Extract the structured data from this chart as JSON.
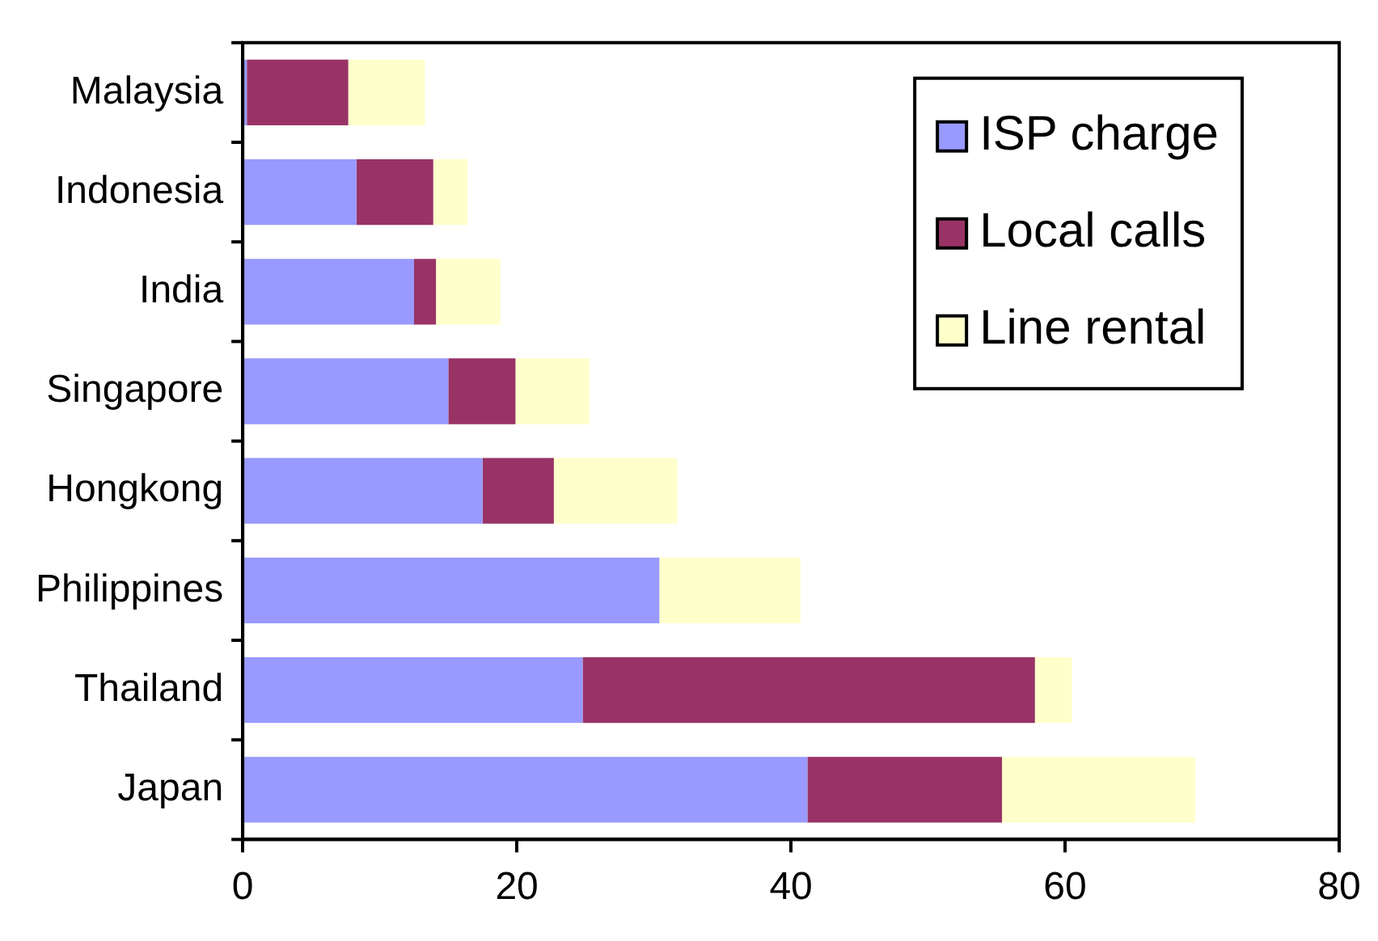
{
  "chart_data": {
    "type": "bar",
    "orientation": "horizontal",
    "stacked": true,
    "categories": [
      "Malaysia",
      "Indonesia",
      "India",
      "Singapore",
      "Hongkong",
      "Philippines",
      "Thailand",
      "Japan"
    ],
    "series": [
      {
        "name": "ISP charge",
        "color": "#9999ff",
        "values": [
          0.3,
          8.3,
          12.5,
          15.0,
          17.5,
          30.4,
          24.8,
          41.2
        ]
      },
      {
        "name": "Local calls",
        "color": "#993366",
        "values": [
          7.4,
          5.6,
          1.6,
          4.9,
          5.2,
          0,
          33.0,
          14.2
        ]
      },
      {
        "name": "Line rental",
        "color": "#ffffcc",
        "values": [
          5.6,
          2.5,
          4.7,
          5.4,
          9.0,
          10.3,
          2.7,
          14.1
        ]
      }
    ],
    "xlim": [
      0,
      80
    ],
    "xticks": [
      0,
      20,
      40,
      60,
      80
    ],
    "grid": false,
    "legend": "top right"
  }
}
